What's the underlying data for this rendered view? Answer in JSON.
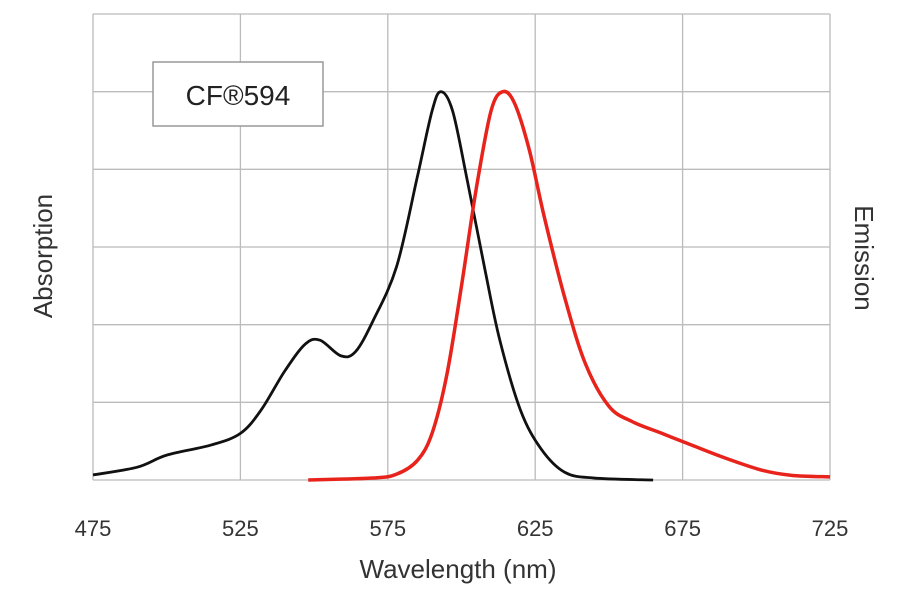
{
  "chart_data": {
    "type": "line",
    "title": "",
    "legend": {
      "text": "CF®594",
      "placement": "top-left"
    },
    "xlabel": "Wavelength (nm)",
    "ylabel_left": "Absorption",
    "ylabel_right": "Emission",
    "xlim": [
      475,
      725
    ],
    "ylim": [
      0,
      1.2
    ],
    "xticks": [
      "475",
      "525",
      "575",
      "625",
      "675",
      "725"
    ],
    "grid": true,
    "series": [
      {
        "key": "absorption",
        "color": "#111111",
        "x": [
          475,
          490,
          500,
          515,
          525,
          532,
          540,
          547,
          552,
          559,
          564,
          570,
          578,
          585,
          590,
          593,
          597,
          602,
          608,
          613,
          620,
          627,
          635,
          645,
          665
        ],
        "y": [
          0.013,
          0.033,
          0.064,
          0.09,
          0.12,
          0.18,
          0.28,
          0.35,
          0.36,
          0.32,
          0.33,
          0.41,
          0.55,
          0.78,
          0.95,
          1.0,
          0.95,
          0.77,
          0.54,
          0.36,
          0.18,
          0.08,
          0.02,
          0.005,
          0
        ]
      },
      {
        "key": "emission",
        "color": "#e8231c",
        "x": [
          548,
          570,
          578,
          585,
          590,
          595,
          600,
          605,
          610,
          614,
          618,
          623,
          628,
          635,
          642,
          650,
          658,
          668,
          678,
          690,
          702,
          712,
          725
        ],
        "y": [
          0,
          0.005,
          0.015,
          0.05,
          0.12,
          0.27,
          0.5,
          0.75,
          0.95,
          1.0,
          0.97,
          0.85,
          0.68,
          0.47,
          0.3,
          0.19,
          0.15,
          0.12,
          0.09,
          0.055,
          0.025,
          0.012,
          0.008
        ]
      }
    ]
  }
}
